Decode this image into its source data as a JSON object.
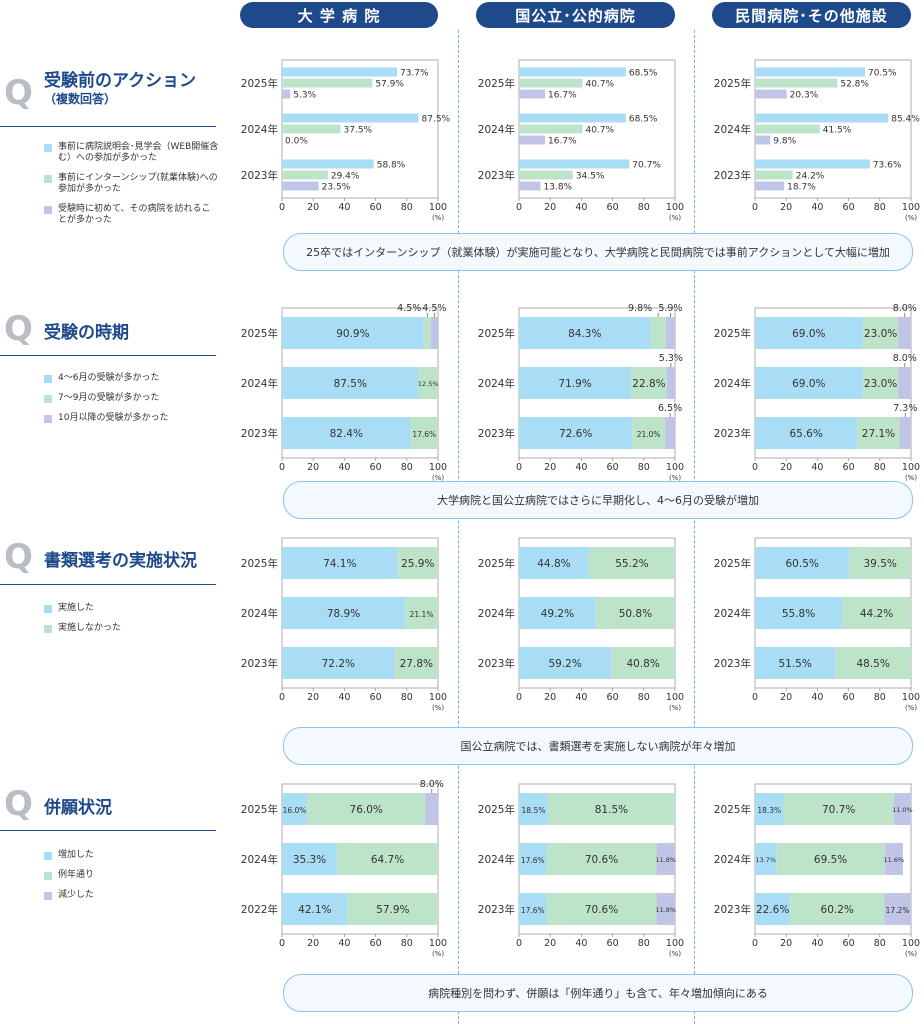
{
  "colors": {
    "blue": "#a9dcf5",
    "green": "#bde3c9",
    "purple": "#c0c4e6",
    "navy": "#1e4a8c",
    "axis": "#9a9a9a"
  },
  "headers": [
    "大 学 病 院",
    "国公立･公的病院",
    "民間病院･その他施設"
  ],
  "percent_unit": "(%)",
  "sections": [
    {
      "id": "pre-exam-action",
      "mark": "Q",
      "title": "受験前のアクション",
      "subtitle": "（複数回答）",
      "legend": [
        "事前に病院説明会･見学会（WEB開催含む）への参加が多かった",
        "事前にインターンシップ(就業体験)への参加が多かった",
        "受験時に初めて、その病院を訪れることが多かった"
      ],
      "note": "25卒ではインターンシップ（就業体験）が実施可能となり、大学病院と民間病院では事前アクションとして大幅に増加"
    },
    {
      "id": "exam-timing",
      "mark": "Q",
      "title": "受験の時期",
      "legend": [
        "4～6月の受験が多かった",
        "7～9月の受験が多かった",
        "10月以降の受験が多かった"
      ],
      "note": "大学病院と国公立病院ではさらに早期化し、4～6月の受験が増加"
    },
    {
      "id": "document-screening",
      "mark": "Q",
      "title": "書類選考の実施状況",
      "legend": [
        "実施した",
        "実施しなかった"
      ],
      "note": "国公立病院では、書類選考を実施しない病院が年々増加"
    },
    {
      "id": "multiple-applications",
      "mark": "Q",
      "title": "併願状況",
      "legend": [
        "増加した",
        "例年通り",
        "減少した"
      ],
      "note": "病院種別を問わず、併願は「例年通り」も含て、年々増加傾向にある"
    }
  ],
  "chart_data": [
    {
      "section": "pre-exam-action",
      "hospital": "大 学 病 院",
      "type": "bar",
      "orientation": "horizontal",
      "xlim": [
        0,
        100
      ],
      "xticks": [
        "0",
        "20",
        "40",
        "60",
        "80",
        "100"
      ],
      "categories": [
        "2025年",
        "2024年",
        "2023年"
      ],
      "series": [
        {
          "name": "事前に病院説明会･見学会（WEB開催含む）への参加が多かった",
          "values": [
            73.7,
            87.5,
            58.8
          ]
        },
        {
          "name": "事前にインターンシップ(就業体験)への参加が多かった",
          "values": [
            57.9,
            37.5,
            29.4
          ]
        },
        {
          "name": "受験時に初めて、その病院を訪れることが多かった",
          "values": [
            5.3,
            0.0,
            23.5
          ]
        }
      ]
    },
    {
      "section": "pre-exam-action",
      "hospital": "国公立･公的病院",
      "type": "bar",
      "orientation": "horizontal",
      "xlim": [
        0,
        100
      ],
      "xticks": [
        "0",
        "20",
        "40",
        "60",
        "80",
        "100"
      ],
      "categories": [
        "2025年",
        "2024年",
        "2023年"
      ],
      "series": [
        {
          "name": "事前に病院説明会･見学会（WEB開催含む）への参加が多かった",
          "values": [
            68.5,
            68.5,
            70.7
          ]
        },
        {
          "name": "事前にインターンシップ(就業体験)への参加が多かった",
          "values": [
            40.7,
            40.7,
            34.5
          ]
        },
        {
          "name": "受験時に初めて、その病院を訪れることが多かった",
          "values": [
            16.7,
            16.7,
            13.8
          ]
        }
      ]
    },
    {
      "section": "pre-exam-action",
      "hospital": "民間病院･その他施設",
      "type": "bar",
      "orientation": "horizontal",
      "xlim": [
        0,
        100
      ],
      "xticks": [
        "0",
        "20",
        "40",
        "60",
        "80",
        "100"
      ],
      "categories": [
        "2025年",
        "2024年",
        "2023年"
      ],
      "series": [
        {
          "name": "事前に病院説明会･見学会（WEB開催含む）への参加が多かった",
          "values": [
            70.5,
            85.4,
            73.6
          ]
        },
        {
          "name": "事前にインターンシップ(就業体験)への参加が多かった",
          "values": [
            52.8,
            41.5,
            24.2
          ]
        },
        {
          "name": "受験時に初めて、その病院を訪れることが多かった",
          "values": [
            20.3,
            9.8,
            18.7
          ]
        }
      ]
    },
    {
      "section": "exam-timing",
      "hospital": "大 学 病 院",
      "type": "bar",
      "orientation": "horizontal",
      "stacked": true,
      "xlim": [
        0,
        100
      ],
      "xticks": [
        "0",
        "20",
        "40",
        "60",
        "80",
        "100"
      ],
      "categories": [
        "2025年",
        "2024年",
        "2023年"
      ],
      "series": [
        {
          "name": "4～6月の受験が多かった",
          "values": [
            90.9,
            87.5,
            82.4
          ],
          "labels": [
            "90.9%",
            "87.5%",
            "82.4%"
          ]
        },
        {
          "name": "7～9月の受験が多かった",
          "values": [
            4.5,
            12.5,
            17.6
          ],
          "labels": [
            "4.5%",
            "12.5%",
            "17.6%"
          ]
        },
        {
          "name": "10月以降の受験が多かった",
          "values": [
            4.5,
            0,
            0
          ],
          "labels": [
            "4.5%",
            "",
            ""
          ]
        }
      ]
    },
    {
      "section": "exam-timing",
      "hospital": "国公立･公的病院",
      "type": "bar",
      "orientation": "horizontal",
      "stacked": true,
      "xlim": [
        0,
        100
      ],
      "xticks": [
        "0",
        "20",
        "40",
        "60",
        "80",
        "100"
      ],
      "categories": [
        "2025年",
        "2024年",
        "2023年"
      ],
      "series": [
        {
          "name": "4～6月の受験が多かった",
          "values": [
            84.3,
            71.9,
            72.6
          ],
          "labels": [
            "84.3%",
            "71.9%",
            "72.6%"
          ]
        },
        {
          "name": "7～9月の受験が多かった",
          "values": [
            9.8,
            22.8,
            21.0
          ],
          "labels": [
            "9.8%",
            "22.8%",
            "21.0%"
          ]
        },
        {
          "name": "10月以降の受験が多かった",
          "values": [
            5.9,
            5.3,
            6.5
          ],
          "labels": [
            "5.9%",
            "5.3%",
            "6.5%"
          ]
        }
      ]
    },
    {
      "section": "exam-timing",
      "hospital": "民間病院･その他施設",
      "type": "bar",
      "orientation": "horizontal",
      "stacked": true,
      "xlim": [
        0,
        100
      ],
      "xticks": [
        "0",
        "20",
        "40",
        "60",
        "80",
        "100"
      ],
      "categories": [
        "2025年",
        "2024年",
        "2023年"
      ],
      "series": [
        {
          "name": "4～6月の受験が多かった",
          "values": [
            69.0,
            69.0,
            65.6
          ],
          "labels": [
            "69.0%",
            "69.0%",
            "65.6%"
          ]
        },
        {
          "name": "7～9月の受験が多かった",
          "values": [
            23.0,
            23.0,
            27.1
          ],
          "labels": [
            "23.0%",
            "23.0%",
            "27.1%"
          ]
        },
        {
          "name": "10月以降の受験が多かった",
          "values": [
            8.0,
            8.0,
            7.3
          ],
          "labels": [
            "8.0%",
            "8.0%",
            "7.3%"
          ]
        }
      ]
    },
    {
      "section": "document-screening",
      "hospital": "大 学 病 院",
      "type": "bar",
      "orientation": "horizontal",
      "stacked": true,
      "xlim": [
        0,
        100
      ],
      "xticks": [
        "0",
        "20",
        "40",
        "60",
        "80",
        "100"
      ],
      "categories": [
        "2025年",
        "2024年",
        "2023年"
      ],
      "series": [
        {
          "name": "実施した",
          "values": [
            74.1,
            78.9,
            72.2
          ],
          "labels": [
            "74.1%",
            "78.9%",
            "72.2%"
          ]
        },
        {
          "name": "実施しなかった",
          "values": [
            25.9,
            21.1,
            27.8
          ],
          "labels": [
            "25.9%",
            "21.1%",
            "27.8%"
          ]
        }
      ]
    },
    {
      "section": "document-screening",
      "hospital": "国公立･公的病院",
      "type": "bar",
      "orientation": "horizontal",
      "stacked": true,
      "xlim": [
        0,
        100
      ],
      "xticks": [
        "0",
        "20",
        "40",
        "60",
        "80",
        "100"
      ],
      "categories": [
        "2025年",
        "2024年",
        "2023年"
      ],
      "series": [
        {
          "name": "実施した",
          "values": [
            44.8,
            49.2,
            59.2
          ],
          "labels": [
            "44.8%",
            "49.2%",
            "59.2%"
          ]
        },
        {
          "name": "実施しなかった",
          "values": [
            55.2,
            50.8,
            40.8
          ],
          "labels": [
            "55.2%",
            "50.8%",
            "40.8%"
          ]
        }
      ]
    },
    {
      "section": "document-screening",
      "hospital": "民間病院･その他施設",
      "type": "bar",
      "orientation": "horizontal",
      "stacked": true,
      "xlim": [
        0,
        100
      ],
      "xticks": [
        "0",
        "20",
        "40",
        "60",
        "80",
        "100"
      ],
      "categories": [
        "2025年",
        "2024年",
        "2023年"
      ],
      "series": [
        {
          "name": "実施した",
          "values": [
            60.5,
            55.8,
            51.5
          ],
          "labels": [
            "60.5%",
            "55.8%",
            "51.5%"
          ]
        },
        {
          "name": "実施しなかった",
          "values": [
            39.5,
            44.2,
            48.5
          ],
          "labels": [
            "39.5%",
            "44.2%",
            "48.5%"
          ]
        }
      ]
    },
    {
      "section": "multiple-applications",
      "hospital": "大 学 病 院",
      "type": "bar",
      "orientation": "horizontal",
      "stacked": true,
      "xlim": [
        0,
        100
      ],
      "xticks": [
        "0",
        "20",
        "40",
        "60",
        "80",
        "100"
      ],
      "categories": [
        "2025年",
        "2024年",
        "2022年"
      ],
      "series": [
        {
          "name": "増加した",
          "values": [
            16.0,
            35.3,
            42.1
          ],
          "labels": [
            "16.0%",
            "35.3%",
            "42.1%"
          ]
        },
        {
          "name": "例年通り",
          "values": [
            76.0,
            64.7,
            57.9
          ],
          "labels": [
            "76.0%",
            "64.7%",
            "57.9%"
          ]
        },
        {
          "name": "減少した",
          "values": [
            8.0,
            0,
            0
          ],
          "labels": [
            "8.0%",
            "",
            ""
          ]
        }
      ]
    },
    {
      "section": "multiple-applications",
      "hospital": "国公立･公的病院",
      "type": "bar",
      "orientation": "horizontal",
      "stacked": true,
      "xlim": [
        0,
        100
      ],
      "xticks": [
        "0",
        "20",
        "40",
        "60",
        "80",
        "100"
      ],
      "categories": [
        "2025年",
        "2024年",
        "2023年"
      ],
      "series": [
        {
          "name": "増加した",
          "values": [
            18.5,
            17.6,
            17.6
          ],
          "labels": [
            "18.5%",
            "17.6%",
            "17.6%"
          ]
        },
        {
          "name": "例年通り",
          "values": [
            81.5,
            70.6,
            70.6
          ],
          "labels": [
            "81.5%",
            "70.6%",
            "70.6%"
          ]
        },
        {
          "name": "減少した",
          "values": [
            0,
            11.8,
            11.8
          ],
          "labels": [
            "",
            "11.8%",
            "11.8%"
          ]
        }
      ]
    },
    {
      "section": "multiple-applications",
      "hospital": "民間病院･その他施設",
      "type": "bar",
      "orientation": "horizontal",
      "stacked": true,
      "xlim": [
        0,
        100
      ],
      "xticks": [
        "0",
        "20",
        "40",
        "60",
        "80",
        "100"
      ],
      "categories": [
        "2025年",
        "2024年",
        "2023年"
      ],
      "series": [
        {
          "name": "増加した",
          "values": [
            18.3,
            13.7,
            22.6
          ],
          "labels": [
            "18.3%",
            "13.7%",
            "22.6%"
          ]
        },
        {
          "name": "例年通り",
          "values": [
            70.7,
            69.5,
            60.2
          ],
          "labels": [
            "70.7%",
            "69.5%",
            "60.2%"
          ]
        },
        {
          "name": "減少した",
          "values": [
            11.0,
            11.6,
            17.2
          ],
          "labels": [
            "11.0%",
            "11.6%",
            "17.2%"
          ]
        }
      ]
    }
  ]
}
